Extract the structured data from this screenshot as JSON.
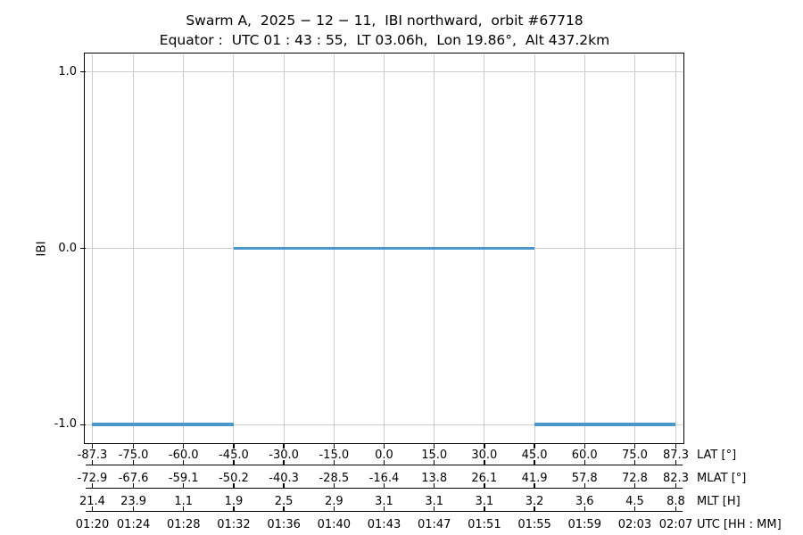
{
  "chart_data": {
    "type": "line",
    "title": "Swarm A,  2025 − 12 − 11,  IBI northward,  orbit #67718",
    "subtitle": "Equator :  UTC 01 : 43 : 55,  LT 03.06h,  Lon 19.86°,  Alt 437.2km",
    "ylabel": "IBI",
    "xlabel_rows": "LAT / MLAT / MLT / UTC",
    "xlim": [
      -89.3,
      89.3
    ],
    "ylim": [
      -1.1,
      1.1
    ],
    "grid": true,
    "legend": "none",
    "line_color": "#4a98c9",
    "grid_color": "#cccccc",
    "axis_color": "#000000",
    "x_tick_lats": [
      -87.3,
      -75.0,
      -60.0,
      -45.0,
      -30.0,
      -15.0,
      0.0,
      15.0,
      30.0,
      45.0,
      60.0,
      75.0,
      87.3
    ],
    "y_ticks": {
      "values": [
        1.0,
        0.0,
        -1.0
      ],
      "labels": [
        "1.0",
        "0.0",
        "-1.0"
      ]
    },
    "axis_rows": [
      {
        "label": "LAT [°]",
        "values": [
          "-87.3",
          "-75.0",
          "-60.0",
          "-45.0",
          "-30.0",
          "-15.0",
          "0.0",
          "15.0",
          "30.0",
          "45.0",
          "60.0",
          "75.0",
          "87.3"
        ]
      },
      {
        "label": "MLAT [°]",
        "values": [
          "-72.9",
          "-67.6",
          "-59.1",
          "-50.2",
          "-40.3",
          "-28.5",
          "-16.4",
          "13.8",
          "26.1",
          "41.9",
          "57.8",
          "72.8",
          "82.3"
        ]
      },
      {
        "label": "MLT [H]",
        "values": [
          "21.4",
          "23.9",
          "1.1",
          "1.9",
          "2.5",
          "2.9",
          "3.1",
          "3.1",
          "3.1",
          "3.2",
          "3.6",
          "4.5",
          "8.8"
        ]
      },
      {
        "label": "UTC [HH : MM]",
        "values": [
          "01:20",
          "01:24",
          "01:28",
          "01:32",
          "01:36",
          "01:40",
          "01:43",
          "01:47",
          "01:51",
          "01:55",
          "01:59",
          "02:03",
          "02:07"
        ]
      }
    ],
    "segments": [
      {
        "y": -1.0,
        "x0": -87.3,
        "x1": -45.0
      },
      {
        "y": 0.0,
        "x0": -45.0,
        "x1": 45.0
      },
      {
        "y": -1.0,
        "x0": 45.0,
        "x1": 87.3
      }
    ]
  }
}
